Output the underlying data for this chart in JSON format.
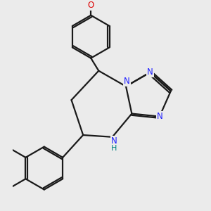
{
  "background_color": "#ebebeb",
  "bond_color": "#1a1a1a",
  "N_color": "#2020ff",
  "O_color": "#dd0000",
  "H_color": "#008080",
  "lw": 1.6,
  "dbo": 0.018,
  "figsize": [
    3.0,
    3.0
  ],
  "dpi": 100,
  "xlim": [
    -0.5,
    1.4
  ],
  "ylim": [
    -1.05,
    1.05
  ]
}
